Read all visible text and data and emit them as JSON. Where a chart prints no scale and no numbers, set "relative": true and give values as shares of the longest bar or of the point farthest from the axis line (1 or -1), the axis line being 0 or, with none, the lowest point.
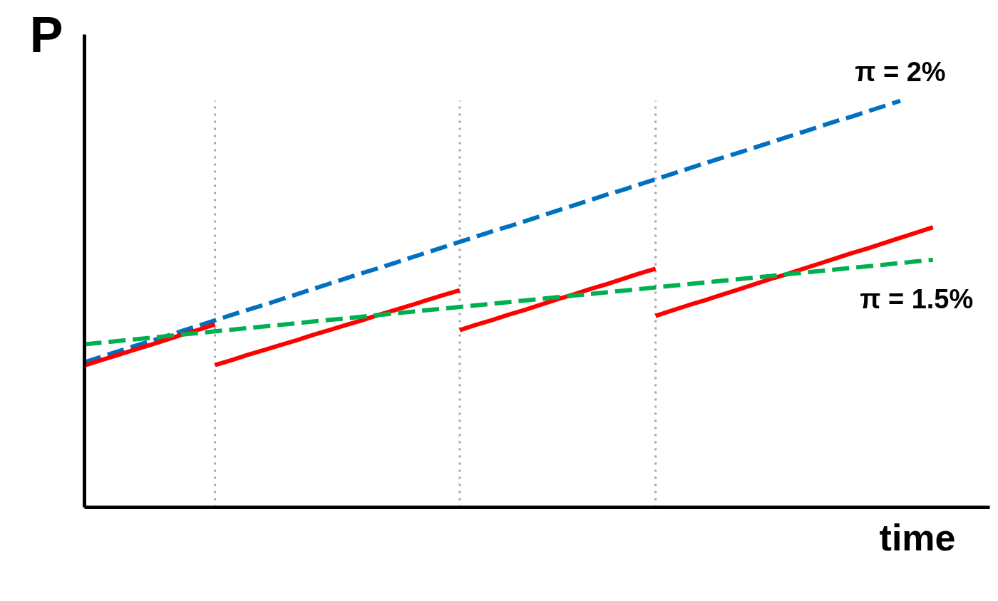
{
  "chart_data": {
    "type": "line",
    "relative": true,
    "xlabel": "time",
    "ylabel": "P",
    "grid": "x",
    "categories": [
      null,
      null,
      null,
      null,
      null,
      null,
      null,
      null,
      null,
      null,
      null,
      null,
      null,
      null,
      null,
      null,
      null,
      null,
      null,
      null,
      null,
      null,
      null,
      null,
      null,
      null,
      null,
      null,
      null,
      null,
      null,
      null,
      null,
      null,
      null,
      null,
      null,
      null,
      null,
      null,
      null,
      null,
      null,
      null,
      null,
      null,
      null,
      null,
      null,
      null,
      null,
      null,
      null
    ],
    "series": [
      {
        "name": "π = 2%",
        "color": "#0070c0",
        "line_style": "dashed",
        "values": [
          0.357,
          0.37,
          0.383,
          0.396,
          0.408,
          0.421,
          0.434,
          0.447,
          0.46,
          0.473,
          0.486,
          0.498,
          0.511,
          0.524,
          0.537,
          0.55,
          0.563,
          0.576,
          0.588,
          0.601,
          0.614,
          0.627,
          0.64,
          0.653,
          0.666,
          0.679,
          0.691,
          0.704,
          0.717,
          0.73,
          0.743,
          0.756,
          0.769,
          0.781,
          0.794,
          0.807,
          0.82,
          0.833,
          0.846,
          0.859,
          0.871,
          0.884,
          0.897,
          0.91,
          0.923,
          0.936,
          0.949,
          0.961,
          0.974,
          0.987,
          1.0,
          null,
          null
        ]
      },
      {
        "color": "#ff0000",
        "line_style": "solid",
        "values": [
          0.349,
          0.362,
          0.374,
          0.387,
          0.399,
          0.412,
          0.425,
          0.437,
          0.45,
          null,
          null,
          null,
          null,
          null,
          null,
          null,
          null,
          null,
          null,
          null,
          null,
          null,
          null,
          0.436,
          0.449,
          0.461,
          0.474,
          0.486,
          0.499,
          0.512,
          0.524,
          0.537,
          0.549,
          0.562,
          0.575,
          0.587,
          null,
          null,
          null,
          null,
          null,
          null,
          null,
          null,
          null,
          null,
          null,
          null,
          null,
          null,
          null,
          null,
          null
        ]
      },
      {
        "color": "#ff0000",
        "line_style": "solid",
        "values": [
          null,
          null,
          null,
          null,
          null,
          null,
          null,
          null,
          0.35,
          0.362,
          0.375,
          0.387,
          0.399,
          0.411,
          0.424,
          0.436,
          0.448,
          0.46,
          0.473,
          0.485,
          0.497,
          0.51,
          0.522,
          0.534,
          null,
          null,
          null,
          null,
          null,
          null,
          null,
          null,
          null,
          null,
          null,
          0.471,
          0.484,
          0.497,
          0.509,
          0.522,
          0.535,
          0.548,
          0.561,
          0.573,
          0.586,
          0.599,
          0.612,
          0.625,
          0.637,
          0.65,
          0.663,
          0.676,
          0.689
        ]
      },
      {
        "name": "π = 1.5%",
        "color": "#00b050",
        "line_style": "dashed",
        "values": [
          0.401,
          0.405,
          0.409,
          0.413,
          0.417,
          0.421,
          0.425,
          0.429,
          0.433,
          0.437,
          0.441,
          0.445,
          0.449,
          0.453,
          0.457,
          0.461,
          0.465,
          0.469,
          0.473,
          0.477,
          0.481,
          0.485,
          0.489,
          0.493,
          0.497,
          0.501,
          0.505,
          0.509,
          0.513,
          0.517,
          0.521,
          0.525,
          0.529,
          0.533,
          0.537,
          0.541,
          0.545,
          0.549,
          0.553,
          0.557,
          0.561,
          0.565,
          0.569,
          0.573,
          0.577,
          0.581,
          0.585,
          0.589,
          0.593,
          0.597,
          0.601,
          0.605,
          0.609
        ]
      }
    ]
  }
}
